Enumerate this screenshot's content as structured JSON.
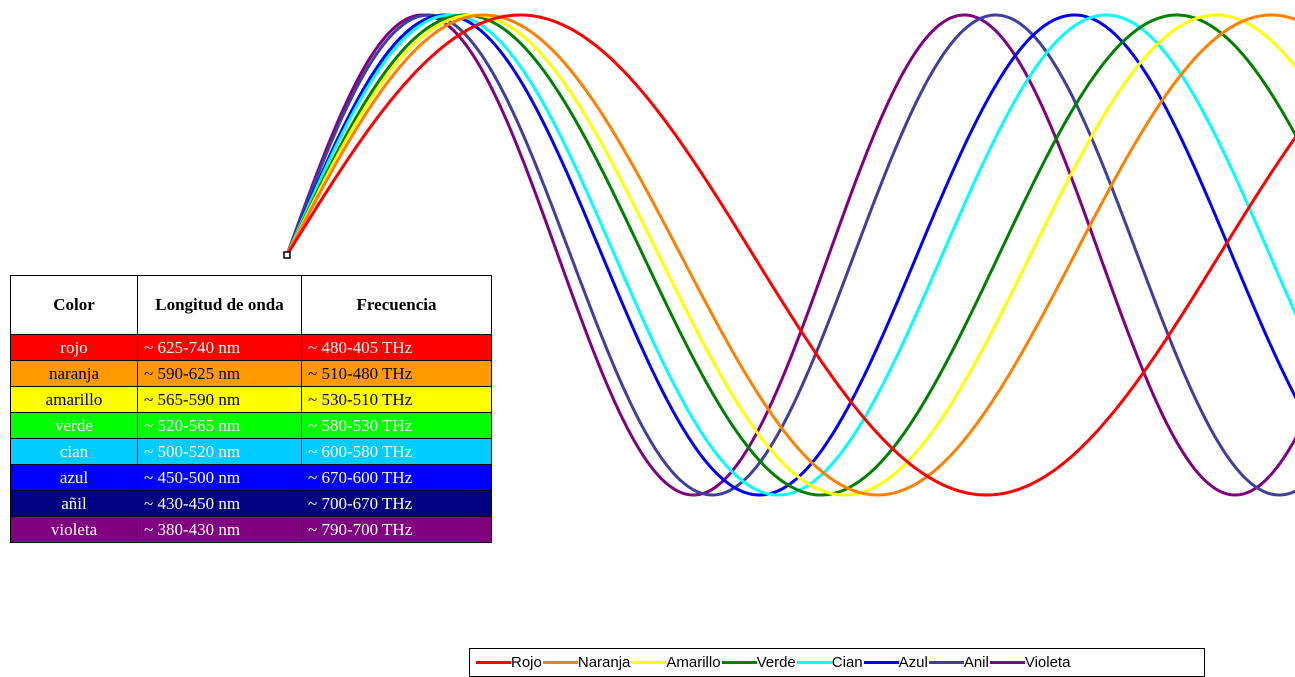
{
  "table": {
    "headers": [
      "Color",
      "Longitud de onda",
      "Frecuencia"
    ],
    "rows": [
      {
        "name": "rojo",
        "wavelength": "~ 625-740 nm",
        "frequency": "~ 480-405 THz",
        "bg": "#ff0000",
        "fg": "#ffffff"
      },
      {
        "name": "naranja",
        "wavelength": "~ 590-625 nm",
        "frequency": "~ 510-480 THz",
        "bg": "#ff9900",
        "fg": "#000000"
      },
      {
        "name": "amarillo",
        "wavelength": "~ 565-590 nm",
        "frequency": "~ 530-510 THz",
        "bg": "#ffff00",
        "fg": "#000000"
      },
      {
        "name": "verde",
        "wavelength": "~ 520-565 nm",
        "frequency": "~ 580-530 THz",
        "bg": "#00ff00",
        "fg": "#ffffff"
      },
      {
        "name": "cian",
        "wavelength": "~ 500-520 nm",
        "frequency": "~ 600-580 THz",
        "bg": "#00ccff",
        "fg": "#ffffff"
      },
      {
        "name": "azul",
        "wavelength": "~ 450-500 nm",
        "frequency": "~ 670-600 THz",
        "bg": "#0000ff",
        "fg": "#ffffff"
      },
      {
        "name": "añil",
        "wavelength": "~ 430-450 nm",
        "frequency": "~ 700-670 THz",
        "bg": "#000080",
        "fg": "#ffffff"
      },
      {
        "name": "violeta",
        "wavelength": "~ 380-430 nm",
        "frequency": "~ 790-700 THz",
        "bg": "#800080",
        "fg": "#ffffff"
      }
    ]
  },
  "chart_data": {
    "type": "line",
    "title": "",
    "xlabel": "",
    "ylabel": "",
    "grid": false,
    "legend_position": "bottom",
    "series": [
      {
        "name": "Rojo",
        "color": "#ff0000",
        "period": 740
      },
      {
        "name": "Naranja",
        "color": "#ff8000",
        "period": 625
      },
      {
        "name": "Amarillo",
        "color": "#ffff00",
        "period": 590
      },
      {
        "name": "Verde",
        "color": "#008000",
        "period": 565
      },
      {
        "name": "Cian",
        "color": "#00ffff",
        "period": 520
      },
      {
        "name": "Azul",
        "color": "#0000ff",
        "period": 500
      },
      {
        "name": "Anil",
        "color": "#3f3fa0",
        "period": 450
      },
      {
        "name": "Violeta",
        "color": "#800080",
        "period": 430
      }
    ]
  }
}
